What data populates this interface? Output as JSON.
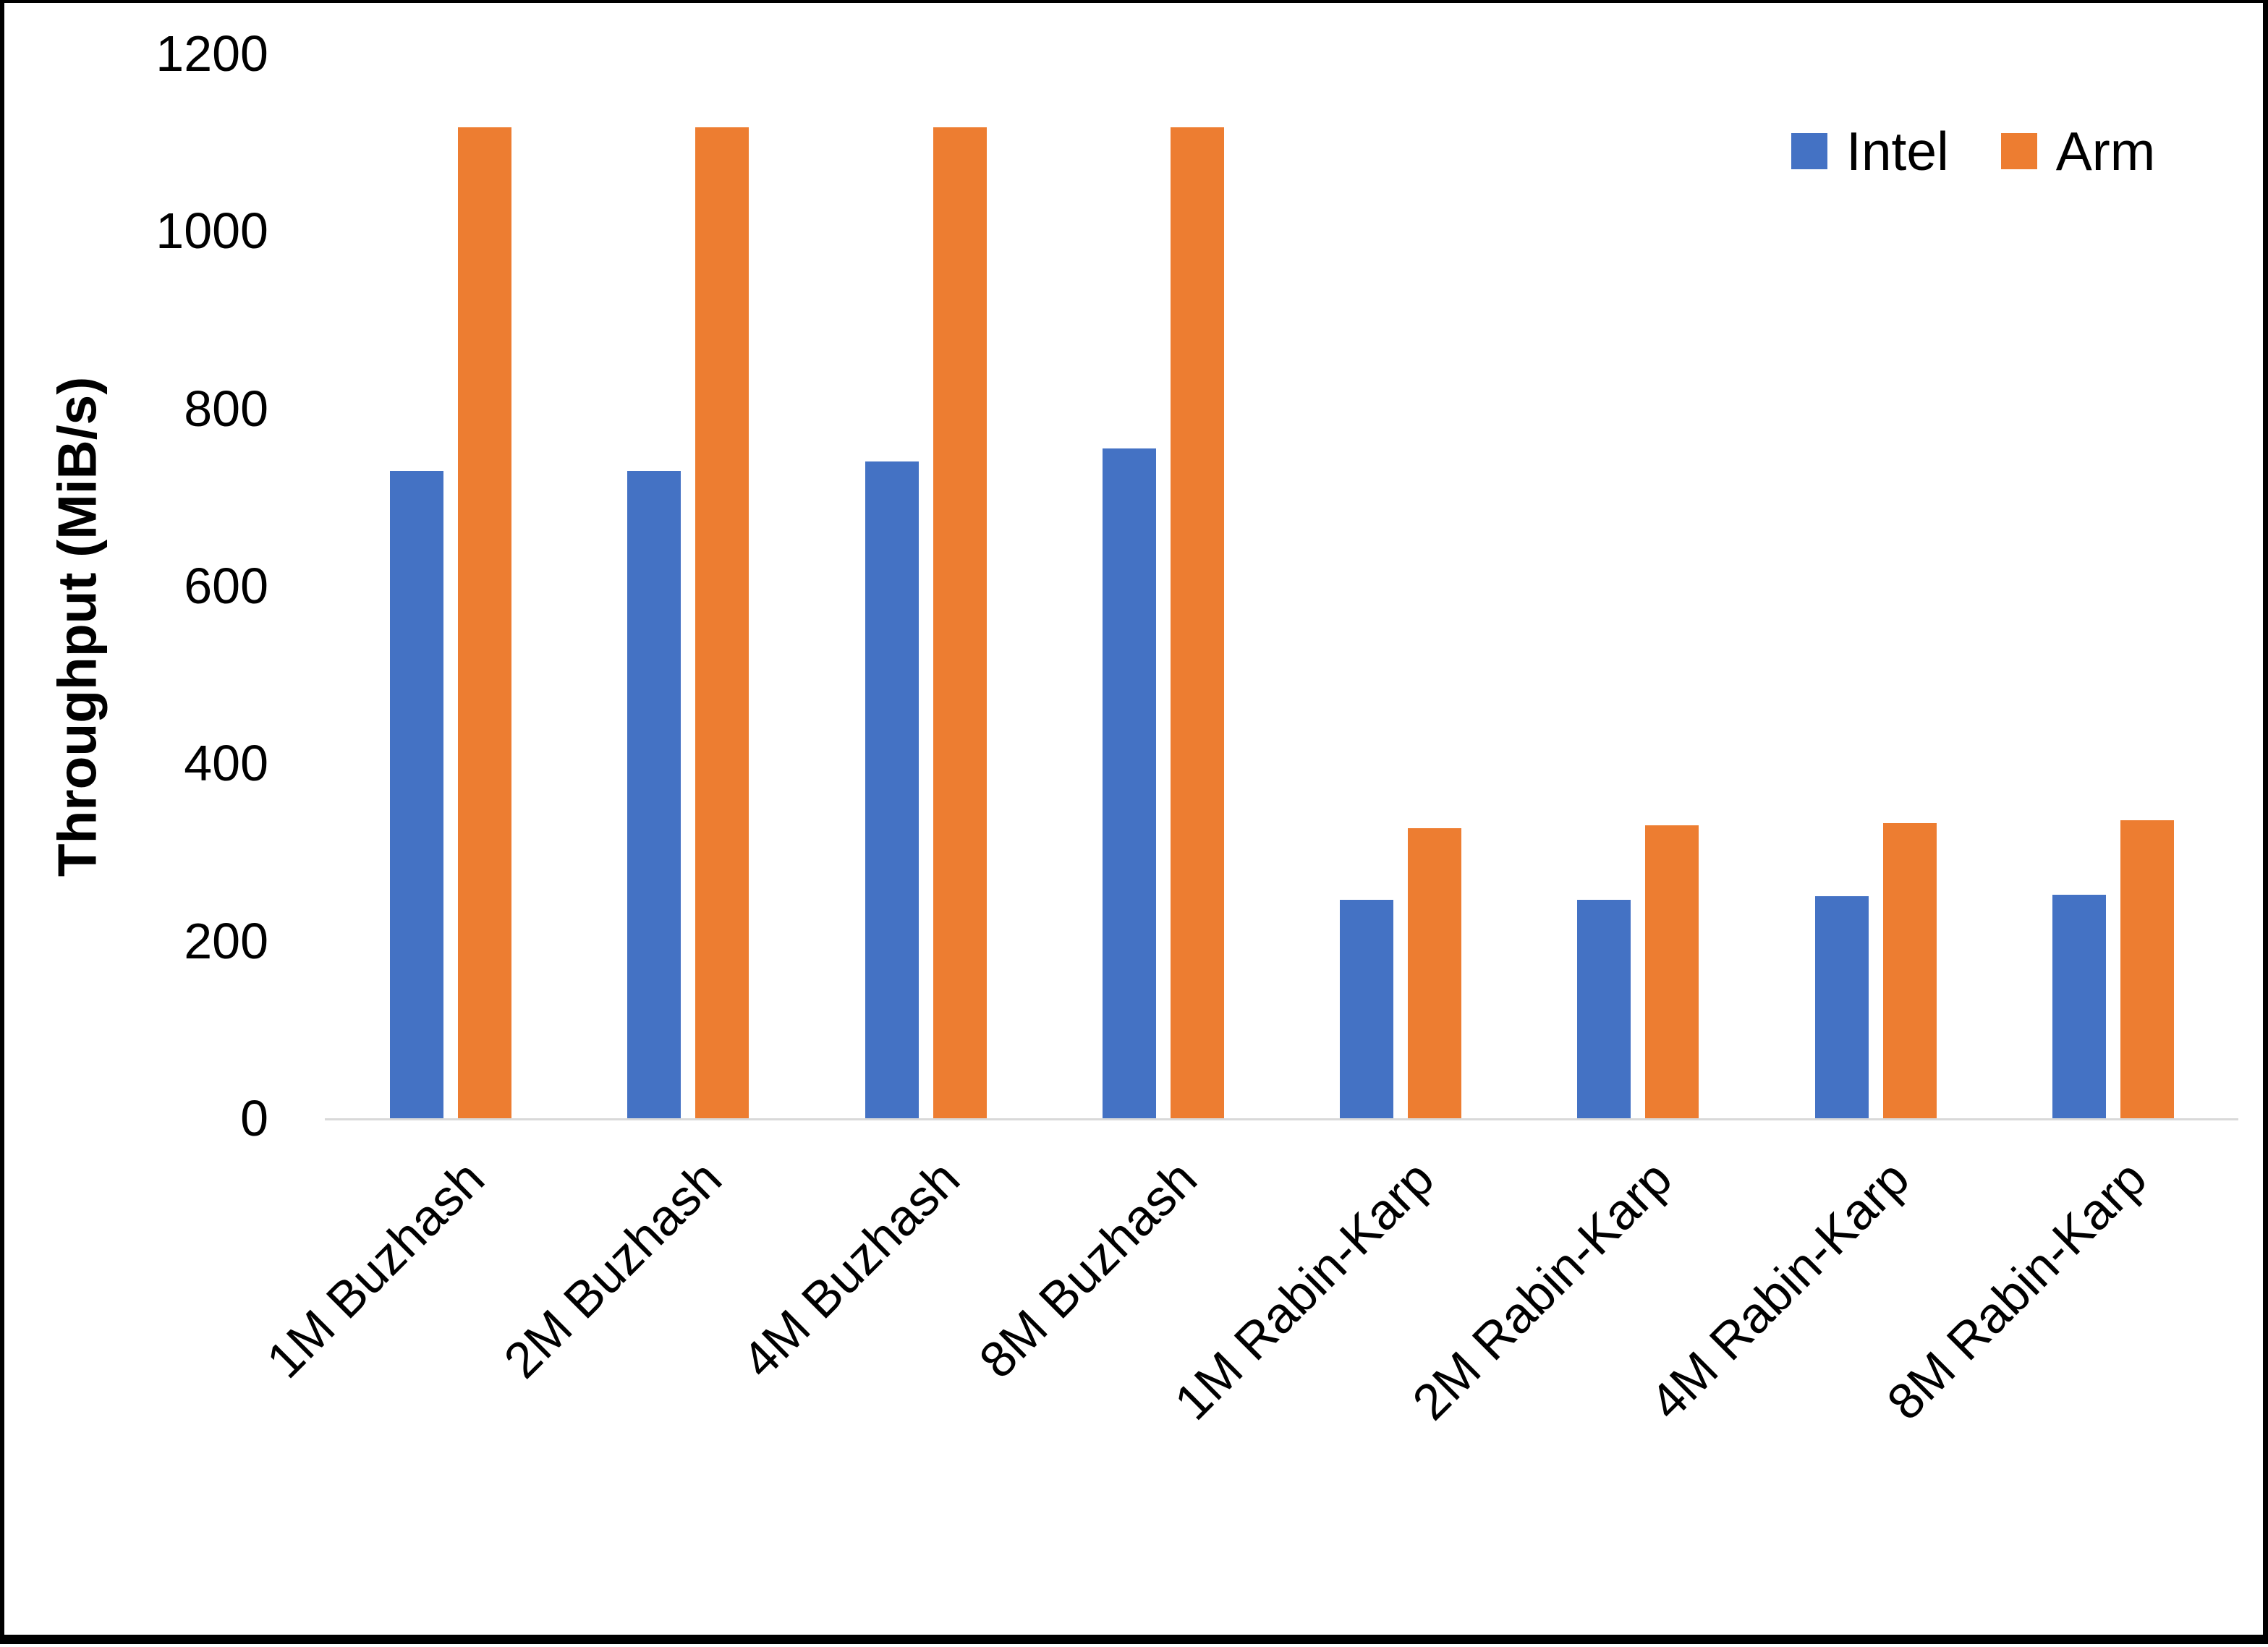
{
  "frame": {
    "background": "#FFFFFF",
    "border_color": "#000000",
    "axis_line_color": "#D9D9D9",
    "text_color": "#000000"
  },
  "chart_data": {
    "type": "bar",
    "categories": [
      "1M Buzhash",
      "2M Buzhash",
      "4M Buzhash",
      "8M Buzhash",
      "1M Rabin-Karp",
      "2M Rabin-Karp",
      "4M Rabin-Karp",
      "8M Rabin-Karp"
    ],
    "series": [
      {
        "name": "Intel",
        "color": "#4472C4",
        "values": [
          730,
          730,
          740,
          755,
          246,
          246,
          250,
          252
        ]
      },
      {
        "name": "Arm",
        "color": "#ED7D31",
        "values": [
          1117,
          1117,
          1117,
          1117,
          327,
          330,
          333,
          336
        ]
      }
    ],
    "title": "",
    "xlabel": "",
    "ylabel": "Throughput (MiB/s)",
    "yticks": [
      0,
      200,
      400,
      600,
      800,
      1000,
      1200
    ],
    "ylim": [
      0,
      1200
    ],
    "grid": false,
    "legend_position": "top-right"
  }
}
